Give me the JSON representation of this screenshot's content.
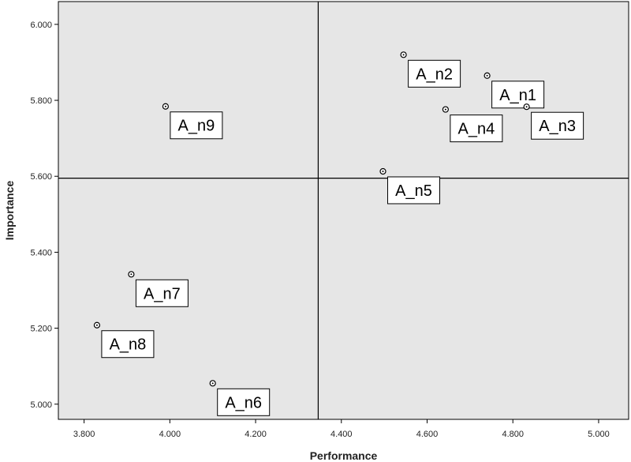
{
  "chart_data": {
    "type": "scatter",
    "title": "",
    "xlabel": "Performance",
    "ylabel": "Importance",
    "xlim": [
      3.74,
      5.07
    ],
    "ylim": [
      4.96,
      6.06
    ],
    "xticks": [
      3.8,
      4.0,
      4.2,
      4.4,
      4.6,
      4.8,
      5.0
    ],
    "yticks": [
      5.0,
      5.2,
      5.4,
      5.6,
      5.8,
      6.0
    ],
    "xtick_labels": [
      "3.800",
      "4.000",
      "4.200",
      "4.400",
      "4.600",
      "4.800",
      "5.000"
    ],
    "ytick_labels": [
      "5.000",
      "5.200",
      "5.400",
      "5.600",
      "5.800",
      "6.000"
    ],
    "reference_lines": {
      "x": 4.346,
      "y": 5.595
    },
    "points": [
      {
        "label": "A_n1",
        "x": 4.74,
        "y": 5.865
      },
      {
        "label": "A_n2",
        "x": 4.545,
        "y": 5.92
      },
      {
        "label": "A_n3",
        "x": 4.832,
        "y": 5.783
      },
      {
        "label": "A_n4",
        "x": 4.643,
        "y": 5.776
      },
      {
        "label": "A_n5",
        "x": 4.497,
        "y": 5.613
      },
      {
        "label": "A_n6",
        "x": 4.1,
        "y": 5.055
      },
      {
        "label": "A_n7",
        "x": 3.91,
        "y": 5.342
      },
      {
        "label": "A_n8",
        "x": 3.83,
        "y": 5.208
      },
      {
        "label": "A_n9",
        "x": 3.99,
        "y": 5.784
      }
    ],
    "grid": false,
    "colors": {
      "plot_bg": "#e6e6e6",
      "label_bg": "#ffffff",
      "line": "#000000"
    }
  }
}
